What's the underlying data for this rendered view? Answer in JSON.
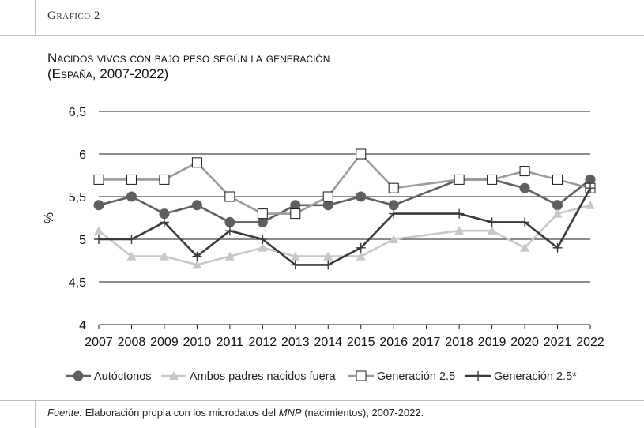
{
  "header": {
    "kicker": "Gráfico 2"
  },
  "chart_data": {
    "type": "line",
    "title_line1": "Nacidos vivos con bajo peso según la generación",
    "title_line2": "(España, 2007-2022)",
    "ylabel": "%",
    "xlabel": "",
    "ylim": [
      4,
      6.5
    ],
    "yticks": [
      "4",
      "4,5",
      "5",
      "5,5",
      "6",
      "6,5"
    ],
    "ytick_values": [
      4,
      4.5,
      5,
      5.5,
      6,
      6.5
    ],
    "categories": [
      "2007",
      "2008",
      "2009",
      "2010",
      "2011",
      "2012",
      "2013",
      "2014",
      "2015",
      "2016",
      "2017",
      "2018",
      "2019",
      "2020",
      "2021",
      "2022"
    ],
    "grid": true,
    "legend_position": "bottom",
    "series": [
      {
        "name": "Autóctonos",
        "color": "#5f5f5f",
        "marker": "circle",
        "values": [
          5.4,
          5.5,
          5.3,
          5.4,
          5.2,
          5.2,
          5.4,
          5.4,
          5.5,
          5.4,
          null,
          5.7,
          5.7,
          5.6,
          5.4,
          5.7
        ]
      },
      {
        "name": "Ambos padres nacidos fuera",
        "color": "#c8c8c8",
        "marker": "triangle",
        "values": [
          5.1,
          4.8,
          4.8,
          4.7,
          4.8,
          4.9,
          4.8,
          4.8,
          4.8,
          5.0,
          null,
          5.1,
          5.1,
          4.9,
          5.3,
          5.4
        ]
      },
      {
        "name": "Generación 2.5",
        "color": "#9a9a9a",
        "marker": "square",
        "values": [
          5.7,
          5.7,
          5.7,
          5.9,
          5.5,
          5.3,
          5.3,
          5.5,
          6.0,
          5.6,
          null,
          5.7,
          5.7,
          5.8,
          5.7,
          5.6
        ]
      },
      {
        "name": "Generación 2.5*",
        "color": "#3a3a3a",
        "marker": "plus",
        "values": [
          5.0,
          5.0,
          5.2,
          4.8,
          5.1,
          5.0,
          4.7,
          4.7,
          4.9,
          5.3,
          null,
          5.3,
          5.2,
          5.2,
          4.9,
          5.6
        ]
      }
    ]
  },
  "footer": {
    "source_label": "Fuente:",
    "source_text_a": " Elaboración propia con los microdatos del ",
    "source_text_em": "MNP",
    "source_text_b": " (nacimientos), 2007-2022."
  }
}
